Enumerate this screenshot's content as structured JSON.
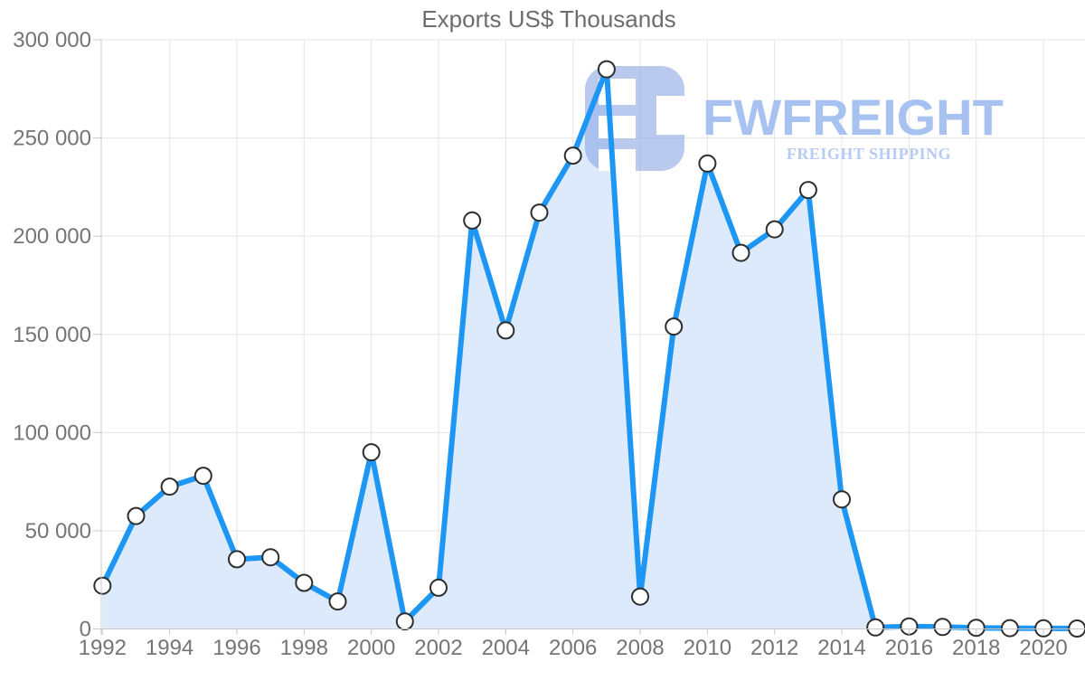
{
  "title": "Exports US$ Thousands",
  "logo": {
    "brand": "FWFREIGHT",
    "tagline": "FREIGHT SHIPPING",
    "brand_color": "#a7c2f0",
    "tagline_color": "#b7cbf3",
    "mark_color": "#7f9fe0",
    "mark_opacity": 0.55
  },
  "chart_data": {
    "type": "area",
    "title": "Exports US$ Thousands",
    "x": [
      1992,
      1993,
      1994,
      1995,
      1996,
      1997,
      1998,
      1999,
      2000,
      2001,
      2002,
      2003,
      2004,
      2005,
      2006,
      2007,
      2008,
      2009,
      2010,
      2011,
      2012,
      2013,
      2014,
      2015,
      2016,
      2017,
      2018,
      2019,
      2020,
      2021
    ],
    "series": [
      {
        "name": "Exports US$ Thousands",
        "values": [
          22000,
          57500,
          72500,
          78000,
          35500,
          36500,
          23500,
          14000,
          90000,
          3800,
          21000,
          208000,
          152000,
          212000,
          241000,
          285000,
          16500,
          154000,
          237000,
          191500,
          203500,
          223500,
          66000,
          800,
          1300,
          1000,
          600,
          400,
          300,
          250
        ]
      }
    ],
    "xlabel": "",
    "ylabel": "",
    "ylim": [
      0,
      300000
    ],
    "ytick_step": 50000,
    "xtick_step": 2,
    "xtick_first": 1992,
    "xtick_last": 2020,
    "grid": true,
    "legend": "none",
    "line_color": "#1e96f3",
    "fill_color": "#dceafb",
    "marker_fill": "#ffffff",
    "marker_stroke": "#2e2e2e",
    "grid_color": "#e5e5e5",
    "axis_color": "#c8c8c8",
    "label_color": "#757575",
    "title_color": "#6d6d6d"
  }
}
